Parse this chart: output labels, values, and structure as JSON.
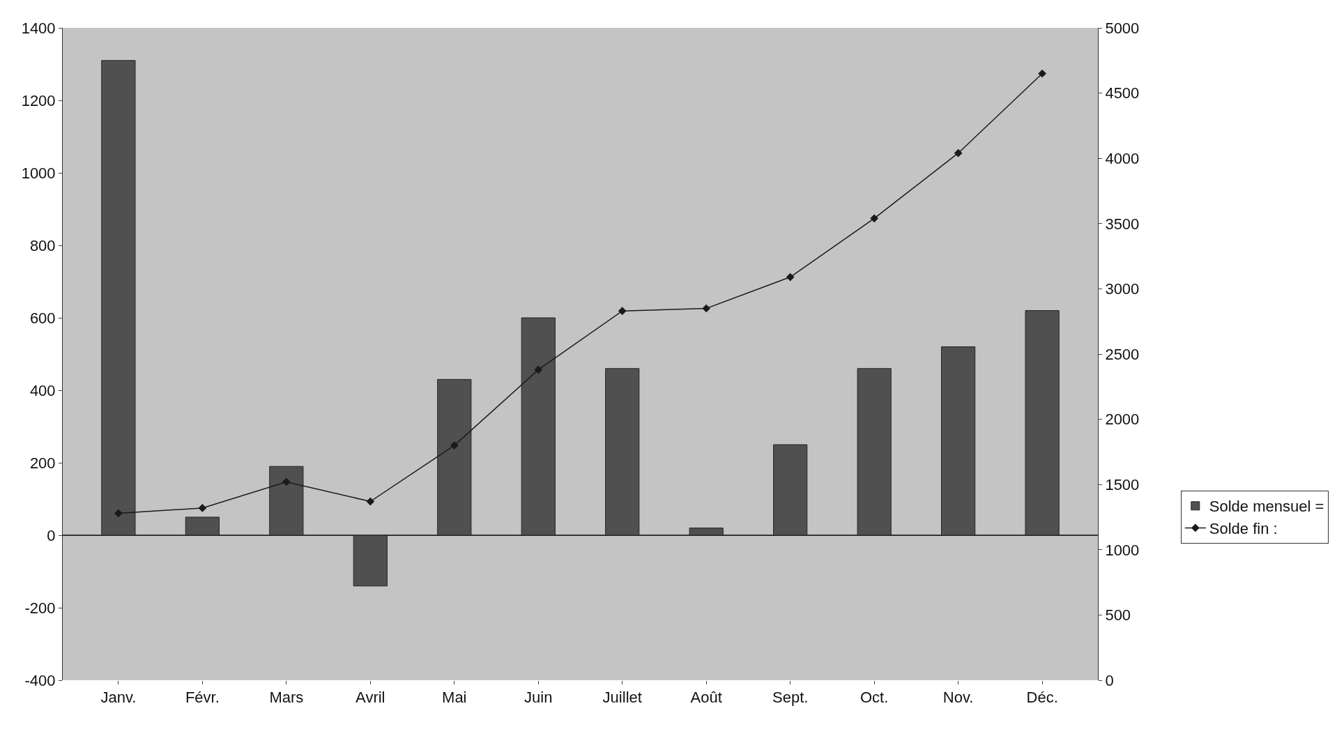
{
  "chart_data": {
    "type": "bar",
    "categories": [
      "Janv.",
      "Févr.",
      "Mars",
      "Avril",
      "Mai",
      "Juin",
      "Juillet",
      "Août",
      "Sept.",
      "Oct.",
      "Nov.",
      "Déc."
    ],
    "series": [
      {
        "name": "Solde mensuel =",
        "color": "#505050",
        "values": [
          1310,
          50,
          190,
          -140,
          430,
          600,
          460,
          20,
          250,
          460,
          520,
          620
        ]
      },
      {
        "name": "Solde fin :",
        "type": "line",
        "axis": "y2",
        "color": "#1a1a1a",
        "marker": "diamond",
        "values": [
          1280,
          1320,
          1520,
          1370,
          1800,
          2380,
          2830,
          2850,
          3090,
          3540,
          4040,
          4650
        ]
      }
    ],
    "ylim": [
      -400,
      1400
    ],
    "yticks": [
      -400,
      -200,
      0,
      200,
      400,
      600,
      800,
      1000,
      1200,
      1400
    ],
    "y2lim": [
      0,
      5000
    ],
    "y2ticks": [
      0,
      500,
      1000,
      1500,
      2000,
      2500,
      3000,
      3500,
      4000,
      4500,
      5000
    ],
    "legend": "right"
  }
}
